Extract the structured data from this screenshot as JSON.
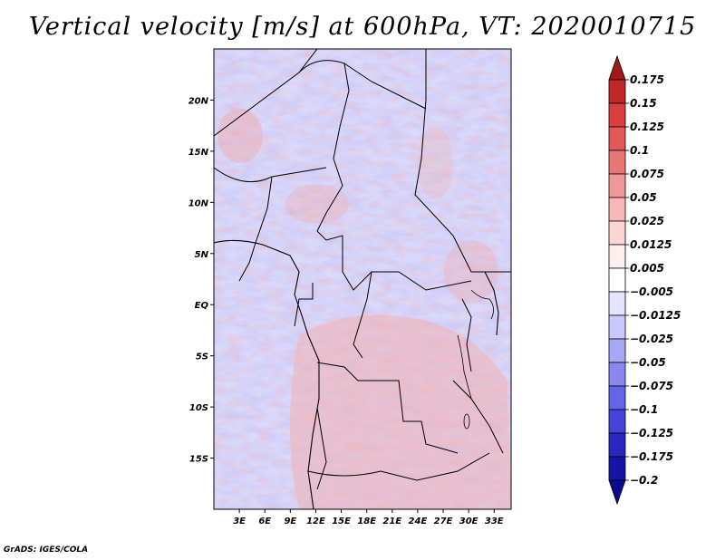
{
  "title": "Vertical velocity [m/s] at 600hPa, VT: 2020010715",
  "credit": "GrADS: IGES/COLA",
  "chart_data": {
    "type": "heatmap",
    "title": "Vertical velocity [m/s] at 600hPa, VT: 2020010715",
    "variable": "Vertical velocity",
    "units": "m/s",
    "level": "600hPa",
    "valid_time": "2020010715",
    "xlim": [
      0,
      35
    ],
    "ylim": [
      -20,
      25
    ],
    "x_ticks": [
      {
        "value": 3,
        "label": "3E"
      },
      {
        "value": 6,
        "label": "6E"
      },
      {
        "value": 9,
        "label": "9E"
      },
      {
        "value": 12,
        "label": "12E"
      },
      {
        "value": 15,
        "label": "15E"
      },
      {
        "value": 18,
        "label": "18E"
      },
      {
        "value": 21,
        "label": "21E"
      },
      {
        "value": 24,
        "label": "24E"
      },
      {
        "value": 27,
        "label": "27E"
      },
      {
        "value": 30,
        "label": "30E"
      },
      {
        "value": 33,
        "label": "33E"
      }
    ],
    "y_ticks": [
      {
        "value": 20,
        "label": "20N"
      },
      {
        "value": 15,
        "label": "15N"
      },
      {
        "value": 10,
        "label": "10N"
      },
      {
        "value": 5,
        "label": "5N"
      },
      {
        "value": 0,
        "label": "EQ"
      },
      {
        "value": -5,
        "label": "5S"
      },
      {
        "value": -10,
        "label": "10S"
      },
      {
        "value": -15,
        "label": "15S"
      }
    ],
    "colorbar": {
      "levels": [
        "0.175",
        "0.15",
        "0.125",
        "0.1",
        "0.075",
        "0.05",
        "0.025",
        "0.0125",
        "0.005",
        "-0.005",
        "-0.0125",
        "-0.025",
        "-0.05",
        "-0.075",
        "-0.1",
        "-0.125",
        "-0.175",
        "-0.2"
      ],
      "colors": [
        "#a01818",
        "#c02828",
        "#d84040",
        "#e05858",
        "#e87878",
        "#f09898",
        "#f8b8b8",
        "#fcd4d4",
        "#fff0f0",
        "#ffffff",
        "#e4e4ff",
        "#c8c8ff",
        "#a8a8f8",
        "#8888f0",
        "#6464e8",
        "#4444d8",
        "#2828c0",
        "#1414a8",
        "#0a0a90"
      ]
    }
  }
}
